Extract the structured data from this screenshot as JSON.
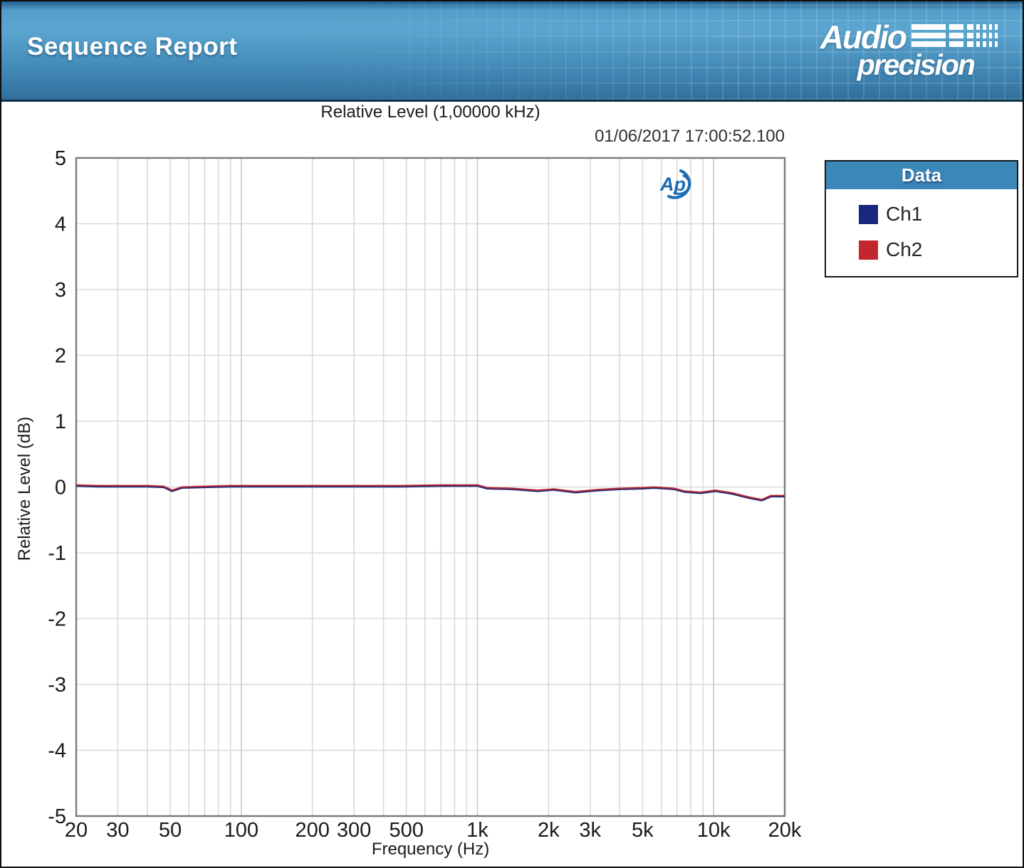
{
  "header": {
    "title": "Sequence Report",
    "logo": {
      "line1": "Audio",
      "line2": "precision"
    }
  },
  "legend": {
    "title": "Data"
  },
  "colors": {
    "banner_top": "#5ba6d0",
    "banner_bottom": "#316f9c",
    "legend_header_bg": "#3a87b8",
    "plot_frame": "#7a7a7a",
    "grid_minor": "#dadada",
    "grid_decade": "#c9c9c9",
    "ch1": "#17277e",
    "ch2": "#c1272d",
    "ap_logo_blue": "#1b6db3"
  },
  "chart_data": {
    "type": "line",
    "title": "Relative Level (1,00000 kHz)",
    "timestamp": "01/06/2017 17:00:52.100",
    "xlabel": "Frequency (Hz)",
    "ylabel": "Relative Level (dB)",
    "watermark": "Ap",
    "x_scale": "log",
    "xlim": [
      20,
      20000
    ],
    "ylim": [
      -5,
      5
    ],
    "grid": true,
    "legend_position": "outside-right",
    "legend_title": "Data",
    "x_ticks": [
      {
        "v": 20,
        "label": "20"
      },
      {
        "v": 30,
        "label": "30"
      },
      {
        "v": 50,
        "label": "50"
      },
      {
        "v": 100,
        "label": "100"
      },
      {
        "v": 200,
        "label": "200"
      },
      {
        "v": 300,
        "label": "300"
      },
      {
        "v": 500,
        "label": "500"
      },
      {
        "v": 1000,
        "label": "1k"
      },
      {
        "v": 2000,
        "label": "2k"
      },
      {
        "v": 3000,
        "label": "3k"
      },
      {
        "v": 5000,
        "label": "5k"
      },
      {
        "v": 10000,
        "label": "10k"
      },
      {
        "v": 20000,
        "label": "20k"
      }
    ],
    "y_ticks": [
      {
        "v": 5,
        "label": "5"
      },
      {
        "v": 4,
        "label": "4"
      },
      {
        "v": 3,
        "label": "3"
      },
      {
        "v": 2,
        "label": "2"
      },
      {
        "v": 1,
        "label": "1"
      },
      {
        "v": 0,
        "label": "0"
      },
      {
        "v": -1,
        "label": "-1"
      },
      {
        "v": -2,
        "label": "-2"
      },
      {
        "v": -3,
        "label": "-3"
      },
      {
        "v": -4,
        "label": "-4"
      },
      {
        "v": -5,
        "label": "-5"
      }
    ],
    "x_gridlines": [
      30,
      40,
      50,
      60,
      70,
      80,
      90,
      100,
      200,
      300,
      400,
      500,
      600,
      700,
      800,
      900,
      1000,
      2000,
      3000,
      4000,
      5000,
      6000,
      7000,
      8000,
      9000,
      10000
    ],
    "y_gridlines": [
      -4,
      -3,
      -2,
      -1,
      0,
      1,
      2,
      3,
      4
    ],
    "series": [
      {
        "name": "Ch1",
        "color": "#17277e",
        "points": [
          [
            20,
            0.02
          ],
          [
            25,
            0.01
          ],
          [
            32,
            0.01
          ],
          [
            40,
            0.01
          ],
          [
            47,
            0.0
          ],
          [
            51,
            -0.06
          ],
          [
            56,
            -0.01
          ],
          [
            70,
            0.0
          ],
          [
            90,
            0.01
          ],
          [
            120,
            0.01
          ],
          [
            170,
            0.01
          ],
          [
            240,
            0.01
          ],
          [
            340,
            0.01
          ],
          [
            480,
            0.01
          ],
          [
            700,
            0.02
          ],
          [
            1000,
            0.02
          ],
          [
            1100,
            -0.02
          ],
          [
            1400,
            -0.03
          ],
          [
            1800,
            -0.06
          ],
          [
            2100,
            -0.04
          ],
          [
            2600,
            -0.08
          ],
          [
            3200,
            -0.05
          ],
          [
            4000,
            -0.03
          ],
          [
            5000,
            -0.02
          ],
          [
            5600,
            -0.01
          ],
          [
            6800,
            -0.03
          ],
          [
            7500,
            -0.07
          ],
          [
            8800,
            -0.09
          ],
          [
            10200,
            -0.06
          ],
          [
            12000,
            -0.1
          ],
          [
            14000,
            -0.16
          ],
          [
            16000,
            -0.2
          ],
          [
            17500,
            -0.14
          ],
          [
            20000,
            -0.14
          ]
        ]
      },
      {
        "name": "Ch2",
        "color": "#c1272d",
        "points": [
          [
            20,
            0.03
          ],
          [
            25,
            0.02
          ],
          [
            32,
            0.02
          ],
          [
            40,
            0.02
          ],
          [
            47,
            0.01
          ],
          [
            51,
            -0.05
          ],
          [
            56,
            0.0
          ],
          [
            70,
            0.01
          ],
          [
            90,
            0.02
          ],
          [
            120,
            0.02
          ],
          [
            170,
            0.02
          ],
          [
            240,
            0.02
          ],
          [
            340,
            0.02
          ],
          [
            480,
            0.02
          ],
          [
            700,
            0.03
          ],
          [
            1000,
            0.03
          ],
          [
            1100,
            -0.01
          ],
          [
            1400,
            -0.02
          ],
          [
            1800,
            -0.05
          ],
          [
            2100,
            -0.03
          ],
          [
            2600,
            -0.07
          ],
          [
            3200,
            -0.04
          ],
          [
            4000,
            -0.02
          ],
          [
            5000,
            -0.01
          ],
          [
            5600,
            0.0
          ],
          [
            6800,
            -0.02
          ],
          [
            7500,
            -0.06
          ],
          [
            8800,
            -0.08
          ],
          [
            10200,
            -0.05
          ],
          [
            12000,
            -0.09
          ],
          [
            14000,
            -0.15
          ],
          [
            16000,
            -0.19
          ],
          [
            17500,
            -0.13
          ],
          [
            20000,
            -0.13
          ]
        ]
      }
    ]
  }
}
